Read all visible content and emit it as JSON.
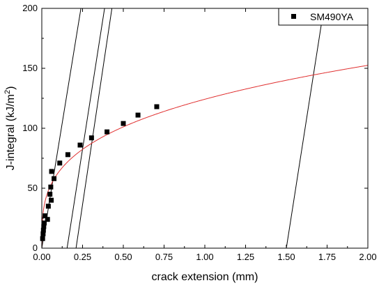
{
  "chart_data": {
    "type": "scatter",
    "xlabel": "crack extension (mm)",
    "ylabel": {
      "prefix": "J-integral (kJ/m",
      "superscript": "2",
      "suffix": ")"
    },
    "xlim": [
      0,
      2.0
    ],
    "ylim": [
      0,
      200
    ],
    "x_ticks": [
      "0.00",
      "0.25",
      "0.50",
      "0.75",
      "1.00",
      "1.25",
      "1.50",
      "1.75",
      "2.00"
    ],
    "y_ticks": [
      "0",
      "50",
      "100",
      "150",
      "200"
    ],
    "legend": {
      "position": "top-right",
      "marker": "square"
    },
    "series": [
      {
        "name": "SM490YA",
        "marker": "square",
        "color": "#000000",
        "points": [
          [
            0.005,
            8
          ],
          [
            0.008,
            12
          ],
          [
            0.01,
            15
          ],
          [
            0.012,
            18
          ],
          [
            0.015,
            21
          ],
          [
            0.02,
            27
          ],
          [
            0.035,
            24
          ],
          [
            0.04,
            35
          ],
          [
            0.05,
            45
          ],
          [
            0.055,
            51
          ],
          [
            0.058,
            40
          ],
          [
            0.06,
            64
          ],
          [
            0.075,
            58
          ],
          [
            0.11,
            71
          ],
          [
            0.16,
            78
          ],
          [
            0.235,
            86
          ],
          [
            0.305,
            92
          ],
          [
            0.4,
            97
          ],
          [
            0.5,
            104
          ],
          [
            0.59,
            111
          ],
          [
            0.705,
            118
          ]
        ]
      }
    ],
    "fit_curve": {
      "color": "#e03030",
      "form": "power",
      "coefficient": 124.2,
      "exponent": 0.296
    },
    "construction_lines": [
      {
        "color": "#000000",
        "points": [
          [
            0.0,
            0.0
          ],
          [
            0.24,
            200
          ]
        ]
      },
      {
        "color": "#000000",
        "points": [
          [
            0.155,
            0.0
          ],
          [
            0.385,
            200
          ]
        ]
      },
      {
        "color": "#000000",
        "points": [
          [
            0.21,
            0.0
          ],
          [
            0.43,
            200
          ]
        ]
      },
      {
        "color": "#000000",
        "points": [
          [
            1.5,
            0.0
          ],
          [
            1.73,
            200
          ]
        ]
      }
    ],
    "frame_color": "#000000"
  }
}
